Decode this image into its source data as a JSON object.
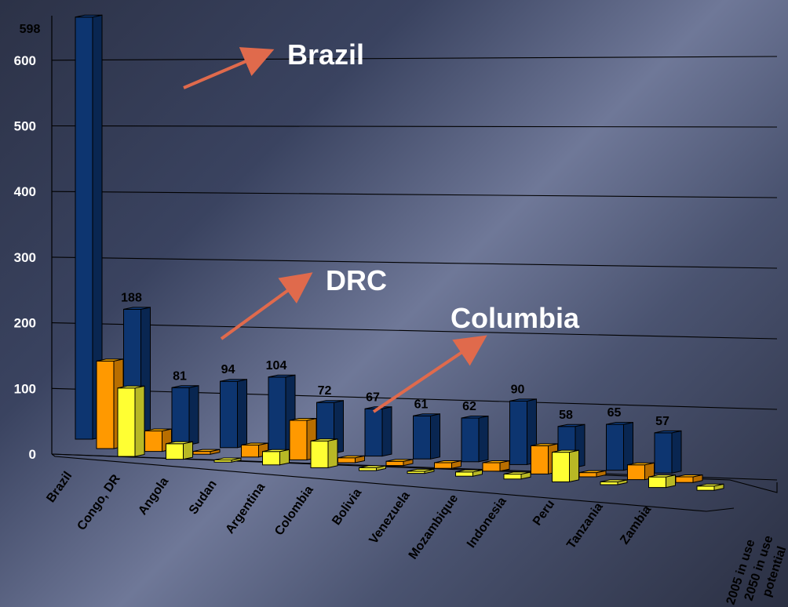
{
  "chart_data": {
    "type": "bar",
    "categories": [
      "Brazil",
      "Congo, DR",
      "Angola",
      "Sudan",
      "Argentina",
      "Colombia",
      "Bolivia",
      "Venezuela",
      "Mozambique",
      "Indonesia",
      "Peru",
      "Tanzania",
      "Zambia"
    ],
    "series": [
      {
        "name": "2005 in use",
        "color": "#ffff33",
        "values": [
          97,
          22,
          3,
          19,
          38,
          4,
          3,
          6,
          7,
          42,
          4,
          15,
          6
        ]
      },
      {
        "name": "2050 in use",
        "color": "#ff9900",
        "values": [
          124,
          29,
          4,
          17,
          56,
          7,
          6,
          8,
          12,
          40,
          6,
          21,
          8
        ]
      },
      {
        "name": "potential",
        "color": "#0d3570",
        "values": [
          598,
          188,
          81,
          94,
          104,
          72,
          67,
          61,
          62,
          90,
          58,
          65,
          57
        ]
      }
    ],
    "yticks": [
      0,
      100,
      200,
      300,
      400,
      500,
      600
    ],
    "ylim": [
      0,
      600
    ]
  },
  "annotations": [
    {
      "text": "Brazil",
      "x1": 234,
      "y1": 112,
      "x2": 342,
      "y2": 66,
      "tx": 366,
      "ty": 82
    },
    {
      "text": "DRC",
      "x1": 282,
      "y1": 432,
      "x2": 392,
      "y2": 352,
      "tx": 415,
      "ty": 370
    },
    {
      "text": "Columbia",
      "x1": 476,
      "y1": 525,
      "x2": 614,
      "y2": 432,
      "tx": 574,
      "ty": 418
    }
  ],
  "arrow_color": "#e06a4c"
}
